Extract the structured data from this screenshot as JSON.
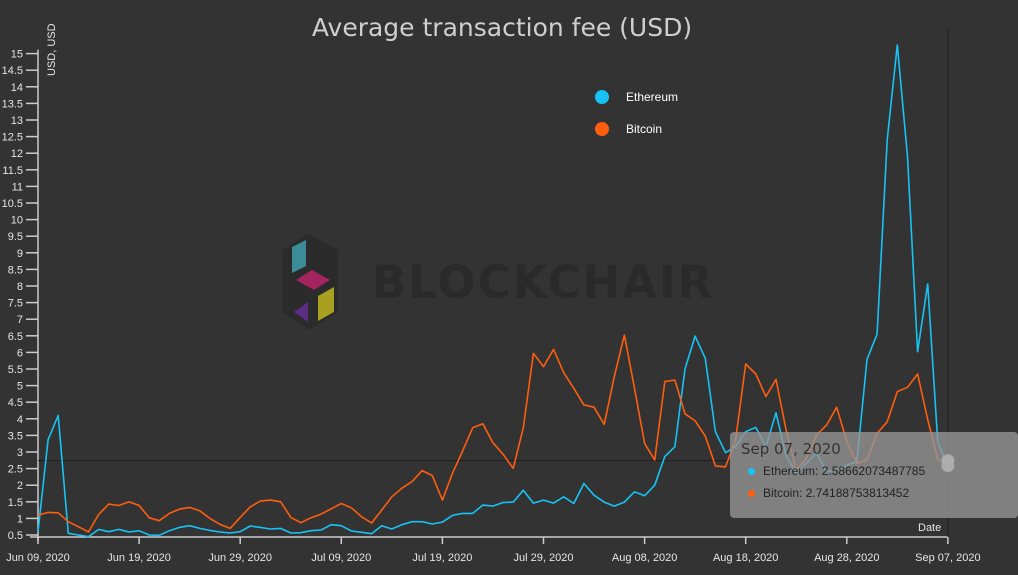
{
  "chart_data": {
    "type": "line",
    "title": "Average transaction fee (USD)",
    "ylabel": "USD, USD",
    "xlabel": "Date",
    "ylim": [
      0.5,
      15
    ],
    "yticks": [
      "0.5",
      "1",
      "1.5",
      "2",
      "2.5",
      "3",
      "3.5",
      "4",
      "4.5",
      "5",
      "5.5",
      "6",
      "6.5",
      "7",
      "7.5",
      "8",
      "8.5",
      "9",
      "9.5",
      "10",
      "10.5",
      "11",
      "11.5",
      "12",
      "12.5",
      "13",
      "13.5",
      "14",
      "14.5",
      "15"
    ],
    "x_start": "2020-06-09",
    "x_end": "2020-09-07",
    "x_step": "1 day",
    "xticks": [
      "Jun 09, 2020",
      "Jun 19, 2020",
      "Jun 29, 2020",
      "Jul 09, 2020",
      "Jul 19, 2020",
      "Jul 29, 2020",
      "Aug 08, 2020",
      "Aug 18, 2020",
      "Aug 28, 2020",
      "Sep 07, 2020"
    ],
    "grid": false,
    "legend_position": "top-right",
    "series": [
      {
        "name": "Ethereum",
        "color": "#17c3f5",
        "values": [
          0.6,
          3.37,
          4.1,
          0.55,
          0.5,
          0.45,
          0.67,
          0.6,
          0.67,
          0.59,
          0.63,
          0.5,
          0.49,
          0.63,
          0.73,
          0.78,
          0.7,
          0.64,
          0.59,
          0.56,
          0.6,
          0.77,
          0.73,
          0.68,
          0.7,
          0.56,
          0.57,
          0.63,
          0.65,
          0.81,
          0.78,
          0.62,
          0.58,
          0.54,
          0.78,
          0.68,
          0.81,
          0.9,
          0.9,
          0.83,
          0.89,
          1.09,
          1.15,
          1.15,
          1.4,
          1.37,
          1.48,
          1.49,
          1.85,
          1.46,
          1.55,
          1.46,
          1.65,
          1.45,
          2.05,
          1.7,
          1.49,
          1.37,
          1.49,
          1.8,
          1.68,
          2.0,
          2.86,
          3.16,
          5.5,
          6.49,
          5.82,
          3.61,
          2.98,
          3.16,
          3.61,
          3.74,
          3.16,
          4.18,
          2.88,
          2.36,
          2.66,
          2.98,
          2.41,
          2.46,
          2.6,
          2.71,
          5.79,
          6.55,
          12.4,
          15.26,
          11.9,
          6.02,
          8.06,
          3.28,
          2.58662073487785
        ]
      },
      {
        "name": "Bitcoin",
        "color": "#ff5e0e",
        "values": [
          1.1,
          1.18,
          1.17,
          0.9,
          0.75,
          0.59,
          1.12,
          1.43,
          1.39,
          1.5,
          1.39,
          1.02,
          0.93,
          1.15,
          1.28,
          1.33,
          1.23,
          1.0,
          0.82,
          0.7,
          1.03,
          1.35,
          1.52,
          1.55,
          1.5,
          1.03,
          0.87,
          1.02,
          1.13,
          1.29,
          1.45,
          1.32,
          1.05,
          0.86,
          1.25,
          1.65,
          1.91,
          2.11,
          2.44,
          2.29,
          1.55,
          2.36,
          3.03,
          3.73,
          3.85,
          3.28,
          2.93,
          2.51,
          3.73,
          5.97,
          5.57,
          6.09,
          5.39,
          4.92,
          4.42,
          4.35,
          3.83,
          5.27,
          6.52,
          4.92,
          3.26,
          2.76,
          5.12,
          5.17,
          4.15,
          3.94,
          3.48,
          2.58,
          2.55,
          3.36,
          5.65,
          5.35,
          4.67,
          5.19,
          3.66,
          2.46,
          2.81,
          3.51,
          3.81,
          4.35,
          3.31,
          2.66,
          2.76,
          3.56,
          3.91,
          4.82,
          4.95,
          5.35,
          3.98,
          2.76,
          2.74188753813452
        ]
      }
    ]
  },
  "tooltip": {
    "date": "Sep 07, 2020",
    "rows": [
      {
        "label": "Ethereum: ",
        "value": "2.58662073487785",
        "color": "#17c3f5"
      },
      {
        "label": "Bitcoin: ",
        "value": "2.74188753813452",
        "color": "#ff5e0e"
      }
    ]
  },
  "watermark": {
    "text": "BLOCKCHAIR"
  }
}
